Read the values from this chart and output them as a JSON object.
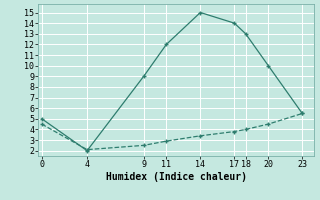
{
  "line1_x": [
    0,
    4,
    9,
    11,
    14,
    17,
    18,
    20,
    23
  ],
  "line1_y": [
    5,
    2,
    9,
    12,
    15,
    14,
    13,
    10,
    5.5
  ],
  "line2_x": [
    0,
    4,
    9,
    11,
    14,
    17,
    18,
    20,
    23
  ],
  "line2_y": [
    4.5,
    2.1,
    2.5,
    2.9,
    3.4,
    3.8,
    4.0,
    4.5,
    5.5
  ],
  "line_color": "#2E7D6E",
  "bg_color": "#C5E8E0",
  "xlabel": "Humidex (Indice chaleur)",
  "xticks": [
    0,
    4,
    9,
    11,
    14,
    17,
    18,
    20,
    23
  ],
  "yticks": [
    2,
    3,
    4,
    5,
    6,
    7,
    8,
    9,
    10,
    11,
    12,
    13,
    14,
    15
  ],
  "ylim": [
    1.5,
    15.8
  ],
  "xlim": [
    -0.3,
    24.0
  ]
}
